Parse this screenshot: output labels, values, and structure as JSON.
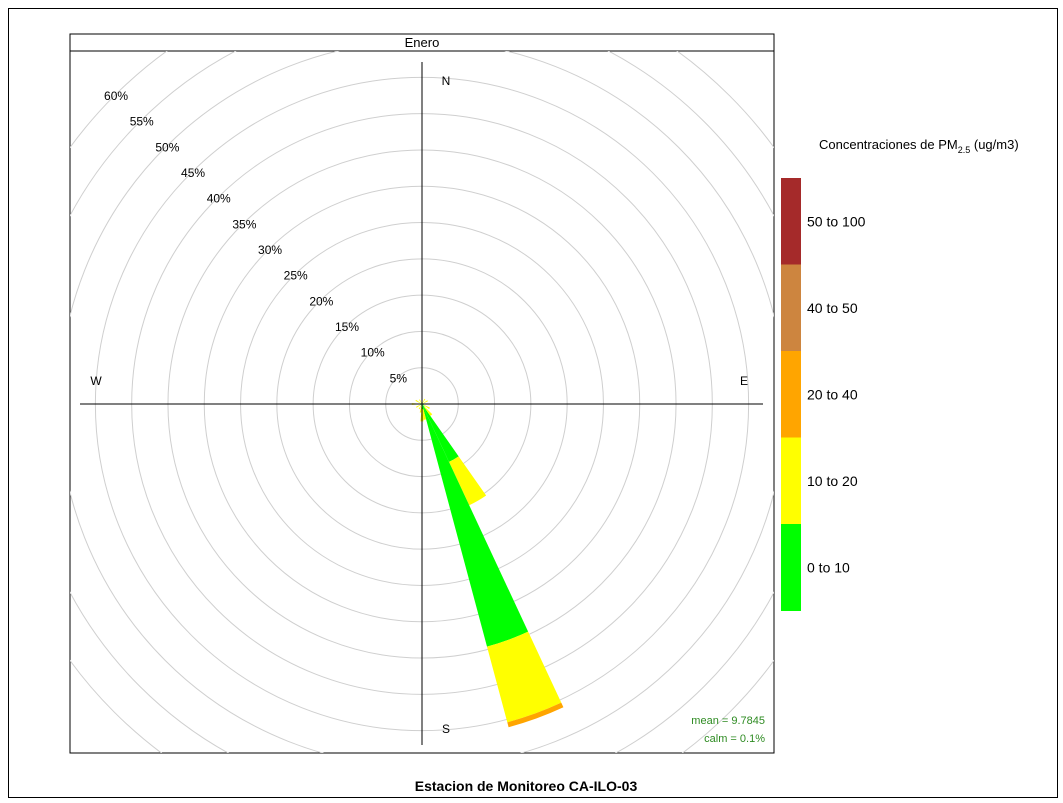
{
  "page": {
    "title": "Estacion de Monitoreo CA-ILO-03"
  },
  "panel": {
    "title": "Enero"
  },
  "compass": {
    "north": "N",
    "south": "S",
    "east": "E",
    "west": "W"
  },
  "stats": {
    "mean": "mean = 9.7845",
    "calm": "calm = 0.1%"
  },
  "legend": {
    "title": "Concentraciones de PM",
    "title_sub": "2.5",
    "title_unit": " (ug/m3)",
    "items": [
      {
        "label": "50 to 100",
        "color": "#a52a2a"
      },
      {
        "label": "40 to 50",
        "color": "#cd853f"
      },
      {
        "label": "20 to 40",
        "color": "#ffa500"
      },
      {
        "label": "10 to 20",
        "color": "#ffff00"
      },
      {
        "label": "0 to 10",
        "color": "#00ff00"
      }
    ]
  },
  "chart_data": {
    "type": "windrose",
    "title": "Enero",
    "radial_unit": "%",
    "radial_ticks": [
      5,
      10,
      15,
      20,
      25,
      30,
      35,
      40,
      45,
      50,
      55,
      60
    ],
    "radial_tick_labels": [
      "5%",
      "10%",
      "15%",
      "20%",
      "25%",
      "30%",
      "35%",
      "40%",
      "45%",
      "50%",
      "55%",
      "60%"
    ],
    "radial_max": 62,
    "grid": true,
    "sector_width_deg": 10,
    "bins": [
      "0 to 10",
      "10 to 20",
      "20 to 40",
      "40 to 50",
      "50 to 100"
    ],
    "bin_colors": [
      "#00ff00",
      "#ffff00",
      "#ffa500",
      "#cd853f",
      "#a52a2a"
    ],
    "petals": [
      {
        "direction": 150,
        "cumulative": [
          8.8,
          15.4,
          15.4,
          15.4,
          15.4
        ]
      },
      {
        "direction": 160,
        "cumulative": [
          34.6,
          45.4,
          46.1,
          46.1,
          46.1
        ]
      },
      {
        "direction": 0,
        "cumulative": [
          0.1,
          0.5,
          0.5,
          0.5,
          0.5
        ]
      },
      {
        "direction": 30,
        "cumulative": [
          0.2,
          0.8,
          0.8,
          0.8,
          0.8
        ]
      },
      {
        "direction": 60,
        "cumulative": [
          0.2,
          0.9,
          0.9,
          0.9,
          0.9
        ]
      },
      {
        "direction": 90,
        "cumulative": [
          0.2,
          0.6,
          0.6,
          0.6,
          0.6
        ]
      },
      {
        "direction": 120,
        "cumulative": [
          0.3,
          1.2,
          1.2,
          1.2,
          1.2
        ]
      },
      {
        "direction": 140,
        "cumulative": [
          0.5,
          2.0,
          2.0,
          2.0,
          2.0
        ]
      },
      {
        "direction": 170,
        "cumulative": [
          0.7,
          2.2,
          2.2,
          2.2,
          2.2
        ]
      },
      {
        "direction": 180,
        "cumulative": [
          0.4,
          2.4,
          2.4,
          2.4,
          2.4
        ]
      },
      {
        "direction": 190,
        "cumulative": [
          0.3,
          1.2,
          1.2,
          1.2,
          1.2
        ]
      },
      {
        "direction": 210,
        "cumulative": [
          0.2,
          0.8,
          0.8,
          0.8,
          0.8
        ]
      },
      {
        "direction": 240,
        "cumulative": [
          0.3,
          0.9,
          0.9,
          0.9,
          0.9
        ]
      },
      {
        "direction": 270,
        "cumulative": [
          0.2,
          1.4,
          1.4,
          1.4,
          1.4
        ]
      },
      {
        "direction": 300,
        "cumulative": [
          0.2,
          1.0,
          1.0,
          1.0,
          1.0
        ]
      },
      {
        "direction": 330,
        "cumulative": [
          0.2,
          0.7,
          0.7,
          0.7,
          0.7
        ]
      }
    ]
  }
}
